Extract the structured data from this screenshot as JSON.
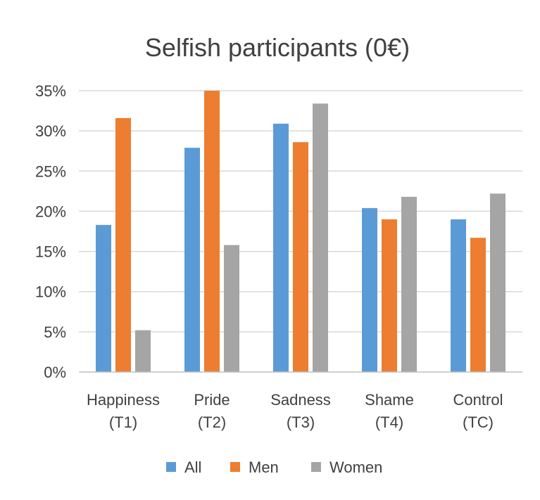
{
  "chart_data": {
    "type": "bar",
    "title": "Selfish participants (0€)",
    "categories": [
      [
        "Happiness",
        "(T1)"
      ],
      [
        "Pride",
        "(T2)"
      ],
      [
        "Sadness",
        "(T3)"
      ],
      [
        "Shame",
        "(T4)"
      ],
      [
        "Control",
        "(TC)"
      ]
    ],
    "series": [
      {
        "name": "All",
        "color": "#5b9bd5",
        "values": [
          18.3,
          27.9,
          30.9,
          20.4,
          19.0
        ]
      },
      {
        "name": "Men",
        "color": "#ed7d31",
        "values": [
          31.6,
          35.0,
          28.6,
          19.0,
          16.7
        ]
      },
      {
        "name": "Women",
        "color": "#a5a5a5",
        "values": [
          5.2,
          15.8,
          33.4,
          21.8,
          22.2
        ]
      }
    ],
    "yticks": [
      "0%",
      "5%",
      "10%",
      "15%",
      "20%",
      "25%",
      "30%",
      "35%"
    ],
    "ylim": [
      0,
      35
    ],
    "grid": true,
    "legend_position": "bottom"
  }
}
